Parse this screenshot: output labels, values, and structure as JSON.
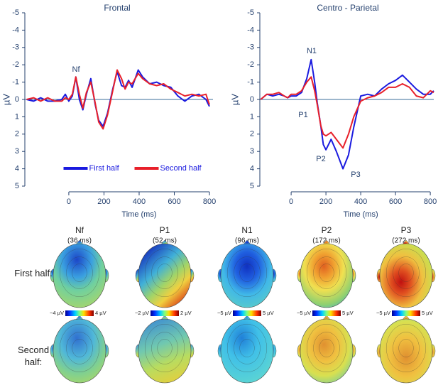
{
  "chart_data": [
    {
      "type": "line",
      "title": "Frontal",
      "x_label": "Time (ms)",
      "y_label": "µV",
      "xlim": [
        -250,
        820
      ],
      "xticks": [
        0,
        200,
        400,
        600,
        800
      ],
      "ylim": [
        -5,
        5
      ],
      "yticks": [
        -5,
        -4,
        -3,
        -2,
        -1,
        0,
        1,
        2,
        3,
        4,
        5
      ],
      "y_reversed": true,
      "legend": "lower center",
      "x": [
        -240,
        -200,
        -160,
        -120,
        -80,
        -40,
        -20,
        0,
        20,
        40,
        60,
        80,
        100,
        125,
        150,
        170,
        195,
        220,
        250,
        275,
        300,
        320,
        340,
        360,
        395,
        420,
        460,
        500,
        540,
        580,
        620,
        660,
        700,
        740,
        780,
        800
      ],
      "series": [
        {
          "name": "First half",
          "color": "#1a1adf",
          "values": [
            0,
            0.1,
            -0.1,
            0.1,
            0.1,
            0,
            -0.3,
            0.1,
            -0.2,
            -1.3,
            0,
            0.6,
            -0.3,
            -1.2,
            0.3,
            1.2,
            1.55,
            0.8,
            -0.6,
            -1.6,
            -0.8,
            -0.7,
            -1.1,
            -0.7,
            -1.7,
            -1.3,
            -0.9,
            -1.0,
            -0.8,
            -0.7,
            -0.2,
            0.1,
            -0.2,
            -0.3,
            0,
            0.4
          ]
        },
        {
          "name": "Second half",
          "color": "#e8202a",
          "values": [
            0,
            -0.1,
            0.1,
            -0.1,
            0.1,
            0.1,
            -0.1,
            0,
            -0.3,
            -1.3,
            -0.3,
            0.5,
            -0.4,
            -1.0,
            0.2,
            1.3,
            1.7,
            0.9,
            -0.5,
            -1.7,
            -1.2,
            -0.6,
            -1.0,
            -0.9,
            -1.5,
            -1.2,
            -0.9,
            -0.8,
            -0.9,
            -0.6,
            -0.4,
            -0.2,
            -0.3,
            -0.2,
            -0.3,
            0.3
          ]
        }
      ],
      "annotations": [
        "Nf"
      ]
    },
    {
      "type": "line",
      "title": "Centro - Parietal",
      "x_label": "Time (ms)",
      "y_label": "µV",
      "xlim": [
        -180,
        820
      ],
      "xticks": [
        0,
        200,
        400,
        600,
        800
      ],
      "ylim": [
        -5,
        5
      ],
      "yticks": [
        -5,
        -4,
        -3,
        -2,
        -1,
        0,
        1,
        2,
        3,
        4,
        5
      ],
      "y_reversed": true,
      "x": [
        -175,
        -140,
        -105,
        -70,
        -40,
        -20,
        0,
        30,
        60,
        90,
        115,
        135,
        150,
        170,
        185,
        200,
        230,
        260,
        298,
        330,
        360,
        400,
        440,
        480,
        520,
        560,
        600,
        640,
        680,
        720,
        760,
        800,
        820
      ],
      "series": [
        {
          "name": "First half",
          "color": "#1a1adf",
          "values": [
            0,
            -0.3,
            -0.2,
            -0.3,
            -0.2,
            -0.1,
            -0.2,
            -0.2,
            -0.4,
            -1.2,
            -2.3,
            -1.0,
            0.2,
            1.5,
            2.6,
            2.9,
            2.3,
            3.0,
            4.0,
            3.2,
            1.6,
            -0.2,
            -0.3,
            -0.2,
            -0.6,
            -0.9,
            -1.1,
            -1.4,
            -1.0,
            -0.6,
            -0.3,
            -0.3,
            -0.5
          ]
        },
        {
          "name": "Second half",
          "color": "#e8202a",
          "values": [
            0,
            -0.3,
            -0.3,
            -0.4,
            -0.2,
            -0.1,
            -0.3,
            -0.3,
            -0.5,
            -1.0,
            -1.3,
            -0.5,
            0.3,
            1.5,
            2.0,
            2.1,
            1.9,
            2.3,
            2.8,
            2.0,
            1.0,
            0.1,
            -0.1,
            -0.2,
            -0.4,
            -0.7,
            -0.7,
            -0.9,
            -0.7,
            -0.2,
            -0.1,
            -0.5,
            -0.4
          ]
        }
      ],
      "annotations": [
        "N1",
        "P1",
        "P2",
        "P3"
      ]
    }
  ],
  "topomaps": {
    "components": [
      {
        "name": "Nf",
        "latency": "(36 ms)",
        "scale_min": "−4 µV",
        "scale_max": "4 µV"
      },
      {
        "name": "P1",
        "latency": "(52 ms)",
        "scale_min": "−2 µV",
        "scale_max": "2 µV"
      },
      {
        "name": "N1",
        "latency": "(96 ms)",
        "scale_min": "−5 µV",
        "scale_max": "5 µV"
      },
      {
        "name": "P2",
        "latency": "(172 ms)",
        "scale_min": "−5 µV",
        "scale_max": "5 µV"
      },
      {
        "name": "P3",
        "latency": "(272 ms)",
        "scale_min": "−5 µV",
        "scale_max": "5 µV"
      }
    ],
    "rows": [
      "First half:",
      "Second half:"
    ]
  }
}
